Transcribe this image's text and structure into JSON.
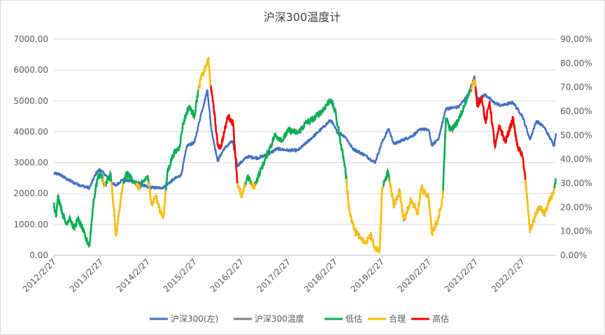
{
  "chart_data": {
    "type": "line",
    "title": "沪深300温度计",
    "xlabel": "",
    "ylabel_left": "",
    "ylabel_right": "",
    "x_ticks": [
      "2012/2/27",
      "2013/2/27",
      "2014/2/27",
      "2015/2/27",
      "2016/2/27",
      "2017/2/27",
      "2018/2/27",
      "2019/2/27",
      "2020/2/27",
      "2021/2/27",
      "2022/2/27"
    ],
    "y_left_ticks": [
      "0.00",
      "1000.00",
      "2000.00",
      "3000.00",
      "4000.00",
      "5000.00",
      "6000.00",
      "7000.00"
    ],
    "y_right_ticks": [
      "0.00%",
      "10.00%",
      "20.00%",
      "30.00%",
      "40.00%",
      "50.00%",
      "60.00%",
      "70.00%",
      "80.00%",
      "90.00%"
    ],
    "ylim_left": [
      0,
      7000
    ],
    "ylim_right": [
      0,
      0.9
    ],
    "x_range": [
      "2012-02-27",
      "2022-11-15"
    ],
    "grid": "horizontal",
    "legend_position": "bottom",
    "thresholds": {
      "low_max": 0.3,
      "high_min": 0.7
    },
    "colors": {
      "index": "#4472C4",
      "temperature": "#808080",
      "low": "#00B050",
      "fair": "#FFC000",
      "high": "#FF0000",
      "grid": "#D9D9D9",
      "text": "#595959"
    },
    "series": [
      {
        "name": "沪深300(左)",
        "axis": "left",
        "points": [
          [
            "2012-02-27",
            2650
          ],
          [
            "2012-04-15",
            2620
          ],
          [
            "2012-06-01",
            2480
          ],
          [
            "2012-08-01",
            2350
          ],
          [
            "2012-10-01",
            2250
          ],
          [
            "2012-12-01",
            2180
          ],
          [
            "2013-01-20",
            2650
          ],
          [
            "2013-02-20",
            2780
          ],
          [
            "2013-04-15",
            2550
          ],
          [
            "2013-06-20",
            2250
          ],
          [
            "2013-08-15",
            2450
          ],
          [
            "2013-10-15",
            2400
          ],
          [
            "2013-12-15",
            2350
          ],
          [
            "2014-02-27",
            2200
          ],
          [
            "2014-05-15",
            2180
          ],
          [
            "2014-07-01",
            2200
          ],
          [
            "2014-09-15",
            2450
          ],
          [
            "2014-11-15",
            2600
          ],
          [
            "2014-12-31",
            3550
          ],
          [
            "2015-02-27",
            3650
          ],
          [
            "2015-04-15",
            4500
          ],
          [
            "2015-06-08",
            5350
          ],
          [
            "2015-07-08",
            4100
          ],
          [
            "2015-08-26",
            3050
          ],
          [
            "2015-10-15",
            3450
          ],
          [
            "2015-12-20",
            3700
          ],
          [
            "2016-01-28",
            2900
          ],
          [
            "2016-04-15",
            3200
          ],
          [
            "2016-07-01",
            3150
          ],
          [
            "2016-09-15",
            3250
          ],
          [
            "2016-12-01",
            3450
          ],
          [
            "2017-02-27",
            3400
          ],
          [
            "2017-05-15",
            3400
          ],
          [
            "2017-08-15",
            3750
          ],
          [
            "2017-11-15",
            4100
          ],
          [
            "2018-01-24",
            4380
          ],
          [
            "2018-03-15",
            4000
          ],
          [
            "2018-05-15",
            3850
          ],
          [
            "2018-07-15",
            3450
          ],
          [
            "2018-10-15",
            3250
          ],
          [
            "2019-01-04",
            3000
          ],
          [
            "2019-02-27",
            3650
          ],
          [
            "2019-04-20",
            4100
          ],
          [
            "2019-06-01",
            3600
          ],
          [
            "2019-08-15",
            3750
          ],
          [
            "2019-10-15",
            3850
          ],
          [
            "2019-12-31",
            4100
          ],
          [
            "2020-02-27",
            4050
          ],
          [
            "2020-03-23",
            3550
          ],
          [
            "2020-05-15",
            3800
          ],
          [
            "2020-07-10",
            4750
          ],
          [
            "2020-10-15",
            4800
          ],
          [
            "2020-12-31",
            5200
          ],
          [
            "2021-02-18",
            5800
          ],
          [
            "2021-03-10",
            5050
          ],
          [
            "2021-05-15",
            5200
          ],
          [
            "2021-07-15",
            4950
          ],
          [
            "2021-09-15",
            4850
          ],
          [
            "2021-12-15",
            4950
          ],
          [
            "2022-02-27",
            4500
          ],
          [
            "2022-04-26",
            3750
          ],
          [
            "2022-06-15",
            4350
          ],
          [
            "2022-08-15",
            4150
          ],
          [
            "2022-10-31",
            3550
          ],
          [
            "2022-11-15",
            3950
          ]
        ]
      },
      {
        "name": "沪深300温度",
        "axis": "right",
        "points": [
          [
            "2012-02-27",
            0.22
          ],
          [
            "2012-03-15",
            0.16
          ],
          [
            "2012-04-01",
            0.25
          ],
          [
            "2012-05-01",
            0.18
          ],
          [
            "2012-06-01",
            0.13
          ],
          [
            "2012-07-01",
            0.16
          ],
          [
            "2012-08-01",
            0.11
          ],
          [
            "2012-09-01",
            0.15
          ],
          [
            "2012-10-01",
            0.12
          ],
          [
            "2012-11-01",
            0.07
          ],
          [
            "2012-12-01",
            0.04
          ],
          [
            "2012-12-31",
            0.22
          ],
          [
            "2013-02-01",
            0.32
          ],
          [
            "2013-02-27",
            0.34
          ],
          [
            "2013-04-01",
            0.29
          ],
          [
            "2013-05-15",
            0.34
          ],
          [
            "2013-06-25",
            0.08
          ],
          [
            "2013-08-15",
            0.28
          ],
          [
            "2013-09-15",
            0.34
          ],
          [
            "2013-11-15",
            0.31
          ],
          [
            "2013-12-20",
            0.28
          ],
          [
            "2014-02-27",
            0.33
          ],
          [
            "2014-04-01",
            0.21
          ],
          [
            "2014-05-01",
            0.25
          ],
          [
            "2014-06-01",
            0.19
          ],
          [
            "2014-07-01",
            0.16
          ],
          [
            "2014-08-01",
            0.35
          ],
          [
            "2014-09-15",
            0.42
          ],
          [
            "2014-11-01",
            0.45
          ],
          [
            "2014-12-01",
            0.55
          ],
          [
            "2015-01-15",
            0.62
          ],
          [
            "2015-02-27",
            0.58
          ],
          [
            "2015-03-20",
            0.66
          ],
          [
            "2015-04-20",
            0.74
          ],
          [
            "2015-05-25",
            0.78
          ],
          [
            "2015-06-15",
            0.82
          ],
          [
            "2015-07-08",
            0.68
          ],
          [
            "2015-07-25",
            0.63
          ],
          [
            "2015-08-26",
            0.46
          ],
          [
            "2015-09-20",
            0.45
          ],
          [
            "2015-11-15",
            0.58
          ],
          [
            "2015-12-25",
            0.55
          ],
          [
            "2016-01-28",
            0.3
          ],
          [
            "2016-03-01",
            0.24
          ],
          [
            "2016-04-15",
            0.33
          ],
          [
            "2016-06-01",
            0.28
          ],
          [
            "2016-08-01",
            0.36
          ],
          [
            "2016-10-01",
            0.44
          ],
          [
            "2016-11-15",
            0.5
          ],
          [
            "2017-01-15",
            0.48
          ],
          [
            "2017-02-27",
            0.52
          ],
          [
            "2017-05-15",
            0.51
          ],
          [
            "2017-07-15",
            0.55
          ],
          [
            "2017-09-15",
            0.57
          ],
          [
            "2017-11-15",
            0.6
          ],
          [
            "2018-01-24",
            0.65
          ],
          [
            "2018-02-27",
            0.6
          ],
          [
            "2018-04-15",
            0.46
          ],
          [
            "2018-05-15",
            0.37
          ],
          [
            "2018-06-20",
            0.18
          ],
          [
            "2018-08-01",
            0.1
          ],
          [
            "2018-09-15",
            0.07
          ],
          [
            "2018-10-20",
            0.05
          ],
          [
            "2018-12-01",
            0.09
          ],
          [
            "2019-01-04",
            0.03
          ],
          [
            "2019-02-10",
            0.02
          ],
          [
            "2019-02-27",
            0.27
          ],
          [
            "2019-04-15",
            0.35
          ],
          [
            "2019-06-01",
            0.2
          ],
          [
            "2019-07-15",
            0.27
          ],
          [
            "2019-08-15",
            0.15
          ],
          [
            "2019-10-15",
            0.23
          ],
          [
            "2019-12-01",
            0.17
          ],
          [
            "2019-12-31",
            0.28
          ],
          [
            "2020-02-27",
            0.24
          ],
          [
            "2020-03-23",
            0.09
          ],
          [
            "2020-05-15",
            0.16
          ],
          [
            "2020-06-15",
            0.24
          ],
          [
            "2020-07-10",
            0.57
          ],
          [
            "2020-08-15",
            0.52
          ],
          [
            "2020-10-15",
            0.56
          ],
          [
            "2020-12-15",
            0.64
          ],
          [
            "2021-01-15",
            0.69
          ],
          [
            "2021-02-18",
            0.73
          ],
          [
            "2021-03-10",
            0.62
          ],
          [
            "2021-04-15",
            0.66
          ],
          [
            "2021-05-15",
            0.55
          ],
          [
            "2021-06-15",
            0.64
          ],
          [
            "2021-07-28",
            0.45
          ],
          [
            "2021-09-01",
            0.54
          ],
          [
            "2021-10-15",
            0.47
          ],
          [
            "2021-12-15",
            0.57
          ],
          [
            "2022-01-15",
            0.46
          ],
          [
            "2022-02-27",
            0.41
          ],
          [
            "2022-03-15",
            0.35
          ],
          [
            "2022-04-26",
            0.1
          ],
          [
            "2022-06-15",
            0.18
          ],
          [
            "2022-07-15",
            0.2
          ],
          [
            "2022-08-15",
            0.17
          ],
          [
            "2022-10-31",
            0.27
          ],
          [
            "2022-11-15",
            0.32
          ]
        ]
      }
    ],
    "legend": [
      {
        "label": "沪深300(左)",
        "color": "#4472C4"
      },
      {
        "label": "沪深300温度",
        "color": "#808080"
      },
      {
        "label": "低估",
        "color": "#00B050"
      },
      {
        "label": "合理",
        "color": "#FFC000"
      },
      {
        "label": "高估",
        "color": "#FF0000"
      }
    ]
  }
}
